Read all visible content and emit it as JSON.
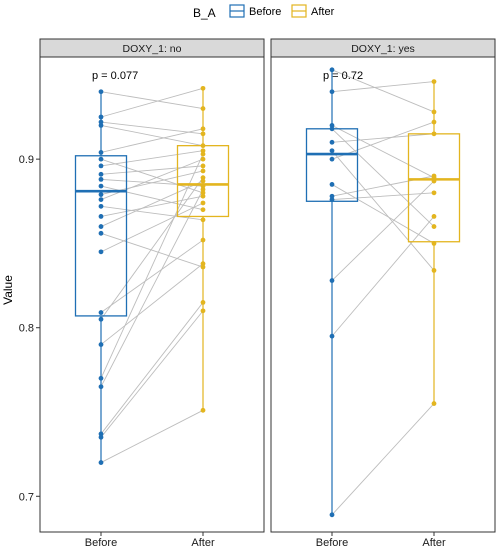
{
  "chart_data": {
    "type": "box",
    "ylabel": "Value",
    "ylim": [
      0.68,
      0.96
    ],
    "y_ticks": [
      "0.7",
      "0.8",
      "0.9"
    ],
    "categories": [
      "Before",
      "After"
    ],
    "legend": {
      "title": "B_A",
      "position": "top",
      "entries": [
        {
          "name": "Before",
          "color": "#1f6fb4"
        },
        {
          "name": "After",
          "color": "#e3b51f"
        }
      ]
    },
    "panels": [
      {
        "strip": "DOXY_1: no",
        "pvalue": "p = 0.077",
        "boxes": {
          "Before": {
            "min": 0.72,
            "q1": 0.807,
            "median": 0.881,
            "q3": 0.902,
            "max": 0.94
          },
          "After": {
            "min": 0.751,
            "q1": 0.866,
            "median": 0.885,
            "q3": 0.908,
            "max": 0.942
          }
        },
        "pairs": [
          [
            0.94,
            0.93
          ],
          [
            0.925,
            0.942
          ],
          [
            0.922,
            0.915
          ],
          [
            0.92,
            0.908
          ],
          [
            0.904,
            0.918
          ],
          [
            0.9,
            0.88
          ],
          [
            0.896,
            0.905
          ],
          [
            0.891,
            0.896
          ],
          [
            0.888,
            0.884
          ],
          [
            0.884,
            0.87
          ],
          [
            0.879,
            0.893
          ],
          [
            0.876,
            0.9
          ],
          [
            0.872,
            0.864
          ],
          [
            0.866,
            0.878
          ],
          [
            0.86,
            0.887
          ],
          [
            0.856,
            0.836
          ],
          [
            0.845,
            0.874
          ],
          [
            0.809,
            0.852
          ],
          [
            0.805,
            0.889
          ],
          [
            0.79,
            0.838
          ],
          [
            0.77,
            0.903
          ],
          [
            0.765,
            0.882
          ],
          [
            0.737,
            0.815
          ],
          [
            0.735,
            0.81
          ],
          [
            0.72,
            0.751
          ]
        ]
      },
      {
        "strip": "DOXY_1: yes",
        "pvalue": "p = 0.72",
        "boxes": {
          "Before": {
            "min": 0.689,
            "q1": 0.875,
            "median": 0.903,
            "q3": 0.918,
            "max": 0.953
          },
          "After": {
            "min": 0.755,
            "q1": 0.851,
            "median": 0.888,
            "q3": 0.915,
            "max": 0.946
          }
        },
        "pairs": [
          [
            0.953,
            0.928
          ],
          [
            0.94,
            0.946
          ],
          [
            0.92,
            0.889
          ],
          [
            0.918,
            0.86
          ],
          [
            0.91,
            0.915
          ],
          [
            0.905,
            0.834
          ],
          [
            0.9,
            0.922
          ],
          [
            0.885,
            0.85
          ],
          [
            0.878,
            0.89
          ],
          [
            0.876,
            0.88
          ],
          [
            0.828,
            0.887
          ],
          [
            0.795,
            0.866
          ],
          [
            0.689,
            0.755
          ]
        ]
      }
    ]
  }
}
